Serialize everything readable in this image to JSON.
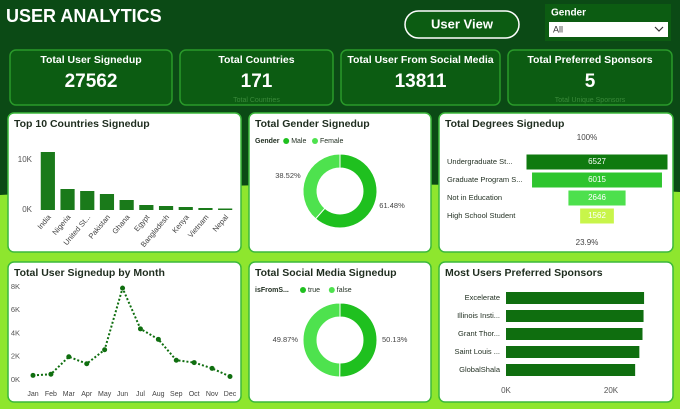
{
  "header": {
    "title": "USER ANALYTICS",
    "button": "User View",
    "slicer": {
      "label": "Gender",
      "value": "All"
    }
  },
  "kpis": [
    {
      "label": "Total User Signedup",
      "value": 27562
    },
    {
      "label": "Total Countries",
      "value": 171,
      "caption": "Total Countries"
    },
    {
      "label": "Total User From Social Media",
      "value": 13811
    },
    {
      "label": "Total Preferred Sponsors",
      "value": 5,
      "caption": "Total Unique Sponsors"
    }
  ],
  "chart_data": [
    {
      "type": "bar",
      "title": "Top 10 Countries Signedup",
      "categories": [
        "India",
        "Nigeria",
        "United St...",
        "Pakistan",
        "Ghana",
        "Egypt",
        "Bangladesh",
        "Kenya",
        "Vietnam",
        "Nepal"
      ],
      "values": [
        11600,
        4200,
        3800,
        3200,
        2000,
        1000,
        800,
        600,
        400,
        300
      ],
      "color": "#1a7a1a",
      "ylim": [
        0,
        12500
      ],
      "yticks": [
        {
          "value": 0,
          "label": "0K"
        },
        {
          "value": 10000,
          "label": "10K"
        }
      ]
    },
    {
      "type": "donut",
      "title": "Total Gender Signedup",
      "legend_title": "Gender",
      "categories": [
        "Male",
        "Female"
      ],
      "values": [
        61.48,
        38.52
      ],
      "value_labels": [
        "61.48%",
        "38.52%"
      ],
      "colors": [
        "#1fc01f",
        "#4ee24e"
      ]
    },
    {
      "type": "funnel",
      "title": "Total Degrees Signedup",
      "categories": [
        "Undergraduate St...",
        "Graduate Program S...",
        "Not in Education",
        "High School Student"
      ],
      "values": [
        6527,
        6015,
        2646,
        1562
      ],
      "colors": [
        "#0f7a0f",
        "#2ec52e",
        "#4de04d",
        "#c8f54a"
      ],
      "top_label": "100%",
      "bottom_label": "23.9%"
    },
    {
      "type": "line",
      "title": "Total User Signedup by Month",
      "categories": [
        "Jan",
        "Feb",
        "Mar",
        "Apr",
        "May",
        "Jun",
        "Jul",
        "Aug",
        "Sep",
        "Oct",
        "Nov",
        "Dec"
      ],
      "values": [
        400,
        500,
        2000,
        1400,
        2600,
        7900,
        4400,
        3500,
        1700,
        1500,
        1000,
        300
      ],
      "color": "#0f6e0f",
      "ylim": [
        0,
        8000
      ],
      "yticks": [
        {
          "value": 0,
          "label": "0K"
        },
        {
          "value": 2000,
          "label": "2K"
        },
        {
          "value": 4000,
          "label": "4K"
        },
        {
          "value": 6000,
          "label": "6K"
        },
        {
          "value": 8000,
          "label": "8K"
        }
      ]
    },
    {
      "type": "donut",
      "title": "Total Social Media Signedup",
      "legend_title": "isFromS...",
      "categories": [
        "true",
        "false"
      ],
      "values": [
        50.13,
        49.87
      ],
      "value_labels": [
        "50.13%",
        "49.87%"
      ],
      "colors": [
        "#1fc01f",
        "#4ee24e"
      ]
    },
    {
      "type": "hbar",
      "title": "Most Users Preferred Sponsors",
      "categories": [
        "Excelerate",
        "Illinois Insti...",
        "Grant Thor...",
        "Saint Louis ...",
        "GlobalShala"
      ],
      "values": [
        26300,
        26200,
        26000,
        25400,
        24600
      ],
      "color": "#0f6e0f",
      "xlim": [
        0,
        28000
      ],
      "xticks": [
        {
          "value": 0,
          "label": "0K"
        },
        {
          "value": 20000,
          "label": "20K"
        }
      ]
    }
  ]
}
